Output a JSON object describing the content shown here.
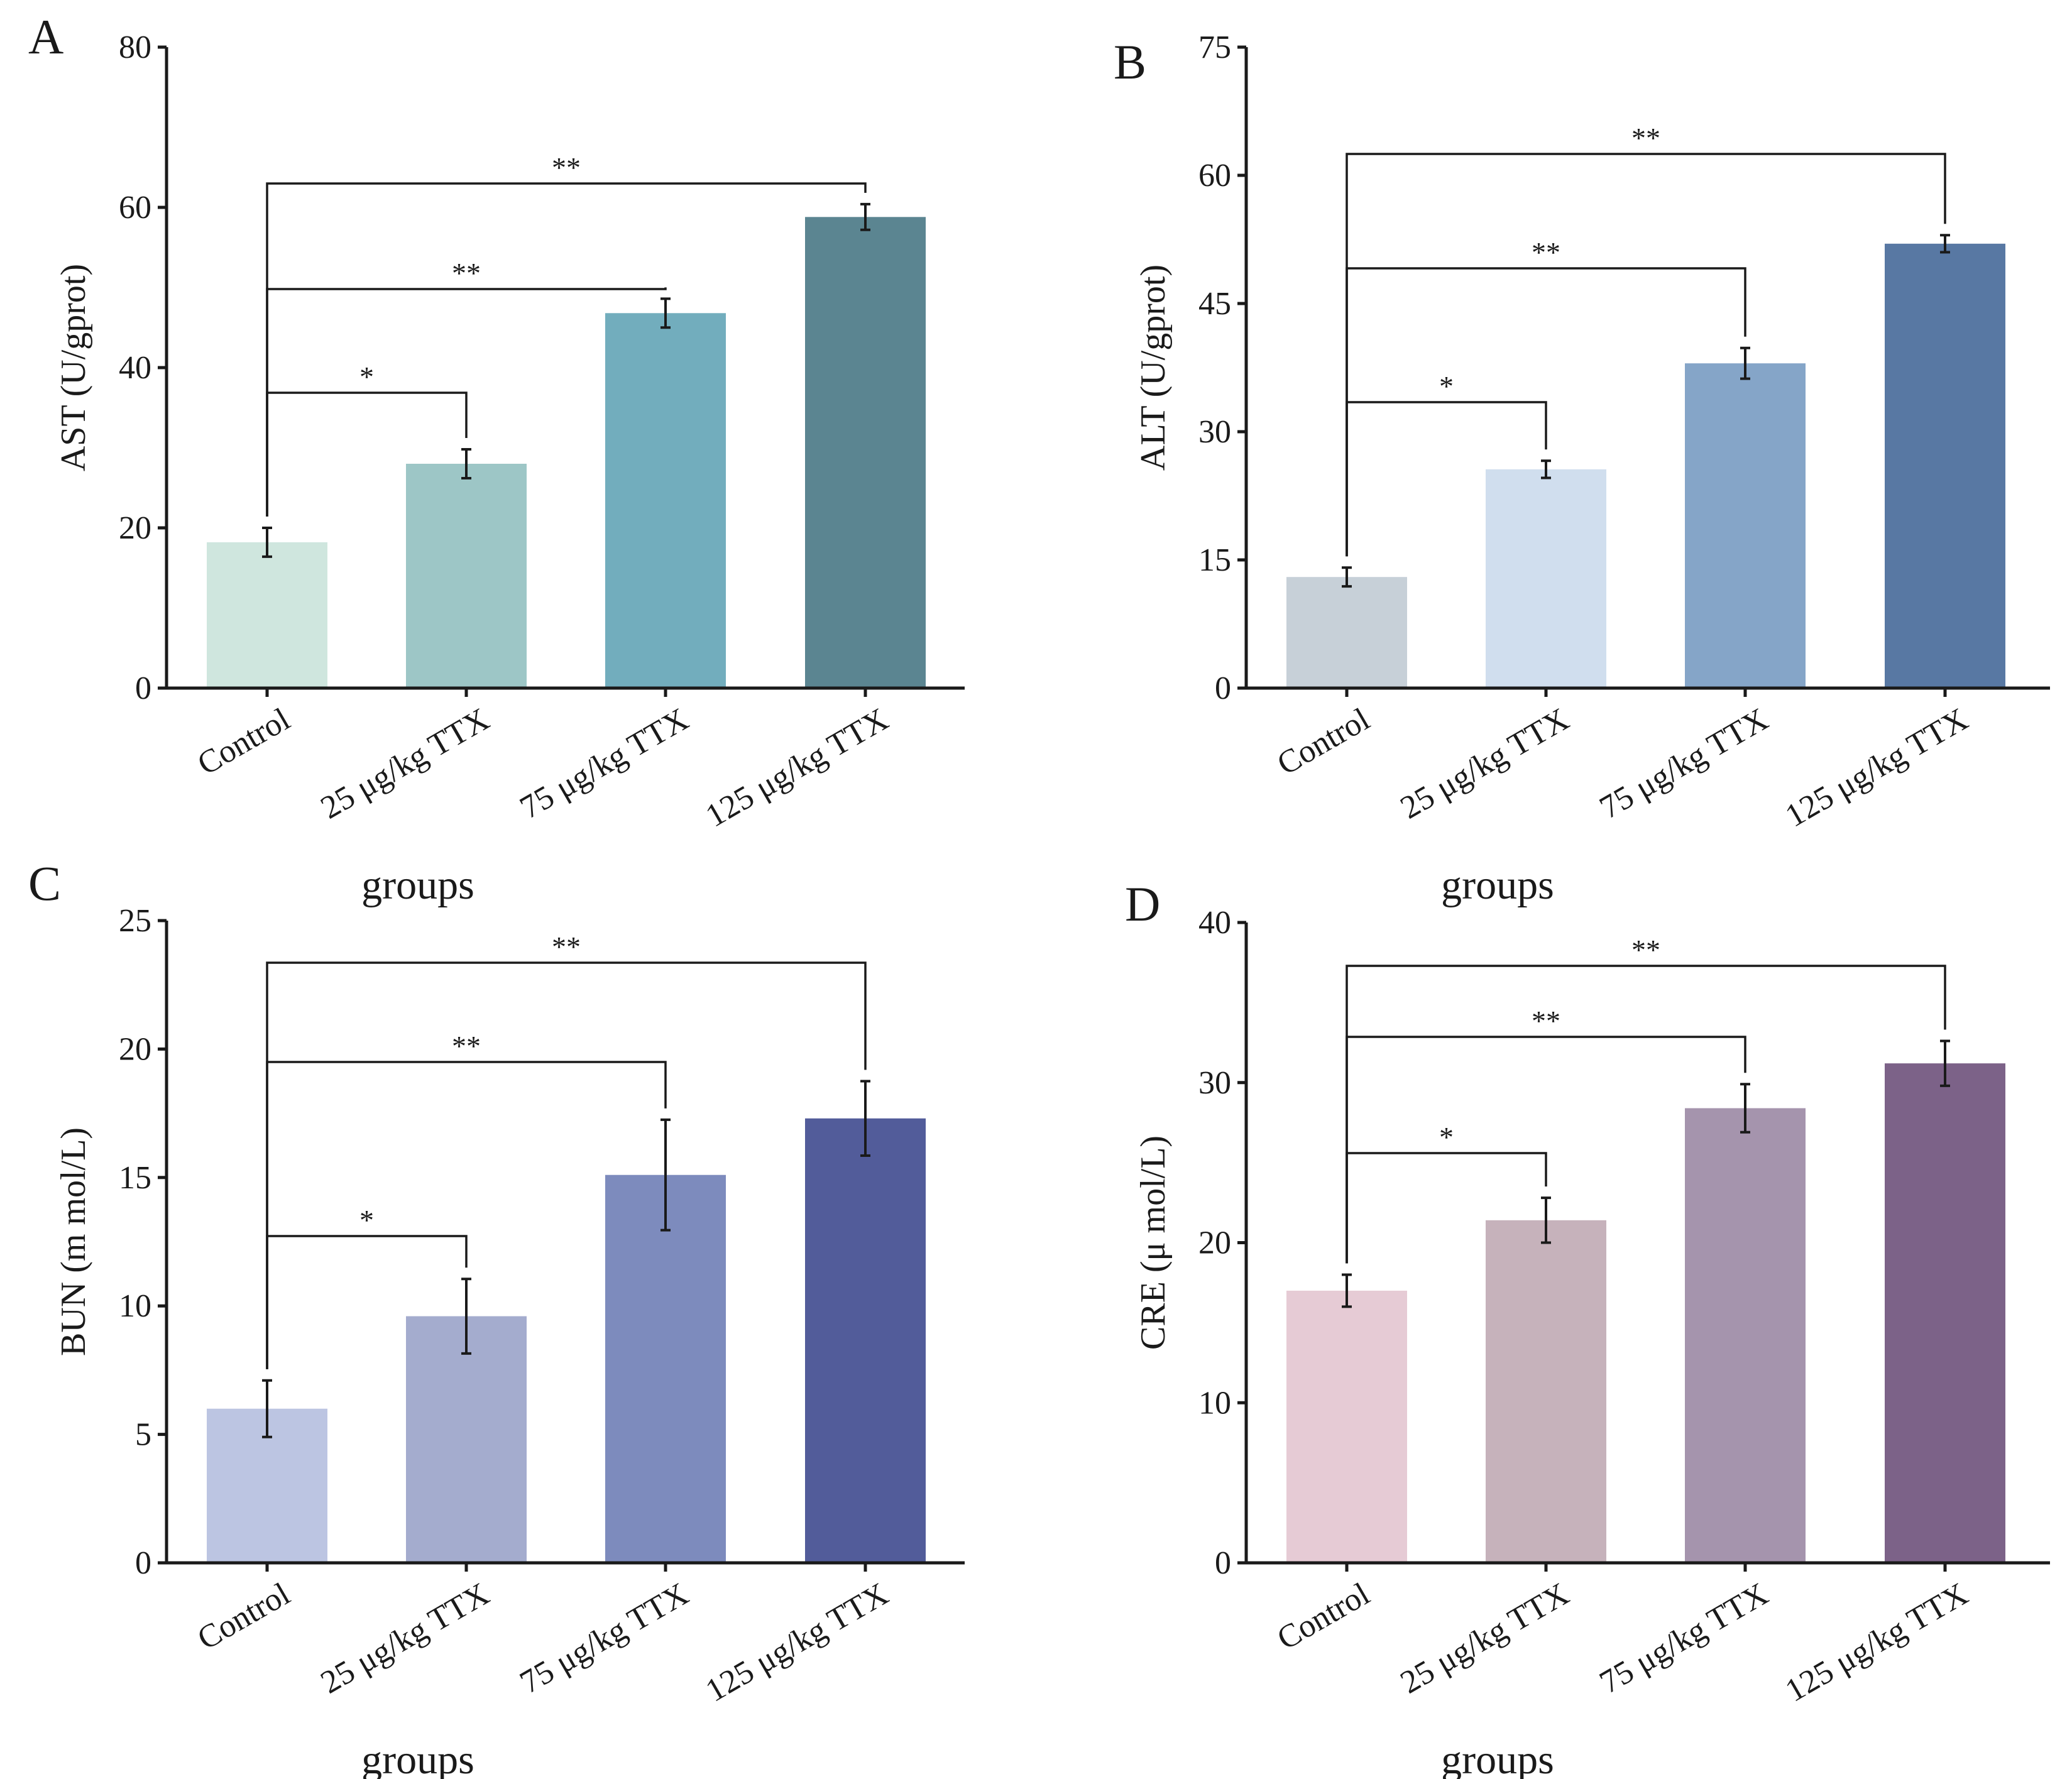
{
  "chart_data": [
    {
      "type": "bar",
      "panel": "A",
      "categories": [
        "Control",
        "25 μg/kg TTX",
        "75 μg/kg TTX",
        "125 μg/kg TTX"
      ],
      "values": [
        18.2,
        28.0,
        46.8,
        58.8
      ],
      "errors": [
        1.8,
        1.8,
        1.8,
        1.6
      ],
      "colors": [
        "#cfe6de",
        "#9dc6c6",
        "#72adbd",
        "#5b8591"
      ],
      "ylabel": "AST (U/gprot)",
      "xlabel": "groups",
      "ylim": [
        0,
        80
      ],
      "yticks": [
        0,
        20,
        40,
        60,
        80
      ],
      "significance": [
        {
          "from": 0,
          "to": 1,
          "label": "*"
        },
        {
          "from": 0,
          "to": 2,
          "label": "**"
        },
        {
          "from": 0,
          "to": 3,
          "label": "**"
        }
      ]
    },
    {
      "type": "bar",
      "panel": "B",
      "categories": [
        "Control",
        "25 μg/kg TTX",
        "75 μg/kg TTX",
        "125 μg/kg TTX"
      ],
      "values": [
        13.0,
        25.6,
        38.0,
        52.0
      ],
      "errors": [
        1.1,
        1.0,
        1.8,
        1.0
      ],
      "colors": [
        "#c7d0d8",
        "#d0deee",
        "#85a5c8",
        "#5878a3"
      ],
      "ylabel": "ALT (U/gprot)",
      "xlabel": "groups",
      "ylim": [
        0,
        75
      ],
      "yticks": [
        0,
        15,
        30,
        45,
        60,
        75
      ],
      "significance": [
        {
          "from": 0,
          "to": 1,
          "label": "*"
        },
        {
          "from": 0,
          "to": 2,
          "label": "**"
        },
        {
          "from": 0,
          "to": 3,
          "label": "**"
        }
      ]
    },
    {
      "type": "bar",
      "panel": "C",
      "categories": [
        "Control",
        "25 μg/kg TTX",
        "75 μg/kg TTX",
        "125 μg/kg TTX"
      ],
      "values": [
        6.0,
        9.6,
        15.1,
        17.3
      ],
      "errors": [
        1.1,
        1.45,
        2.15,
        1.45
      ],
      "colors": [
        "#bcc5e2",
        "#a4acce",
        "#7d8bbd",
        "#525c9a"
      ],
      "ylabel": "BUN (m mol/L)",
      "xlabel": "groups",
      "ylim": [
        0,
        25
      ],
      "yticks": [
        0,
        5,
        10,
        15,
        20,
        25
      ],
      "significance": [
        {
          "from": 0,
          "to": 1,
          "label": "*"
        },
        {
          "from": 0,
          "to": 2,
          "label": "**"
        },
        {
          "from": 0,
          "to": 3,
          "label": "**"
        }
      ]
    },
    {
      "type": "bar",
      "panel": "D",
      "categories": [
        "Control",
        "25 μg/kg TTX",
        "75 μg/kg TTX",
        "125 μg/kg TTX"
      ],
      "values": [
        17.0,
        21.4,
        28.4,
        31.2
      ],
      "errors": [
        1.0,
        1.4,
        1.5,
        1.4
      ],
      "colors": [
        "#e6cbd5",
        "#c6b2bb",
        "#a594ad",
        "#7c6288"
      ],
      "ylabel": "CRE (μ mol/L)",
      "xlabel": "groups",
      "ylim": [
        0,
        40
      ],
      "yticks": [
        0,
        10,
        20,
        30,
        40
      ],
      "significance": [
        {
          "from": 0,
          "to": 1,
          "label": "*"
        },
        {
          "from": 0,
          "to": 2,
          "label": "**"
        },
        {
          "from": 0,
          "to": 3,
          "label": "**"
        }
      ]
    }
  ]
}
